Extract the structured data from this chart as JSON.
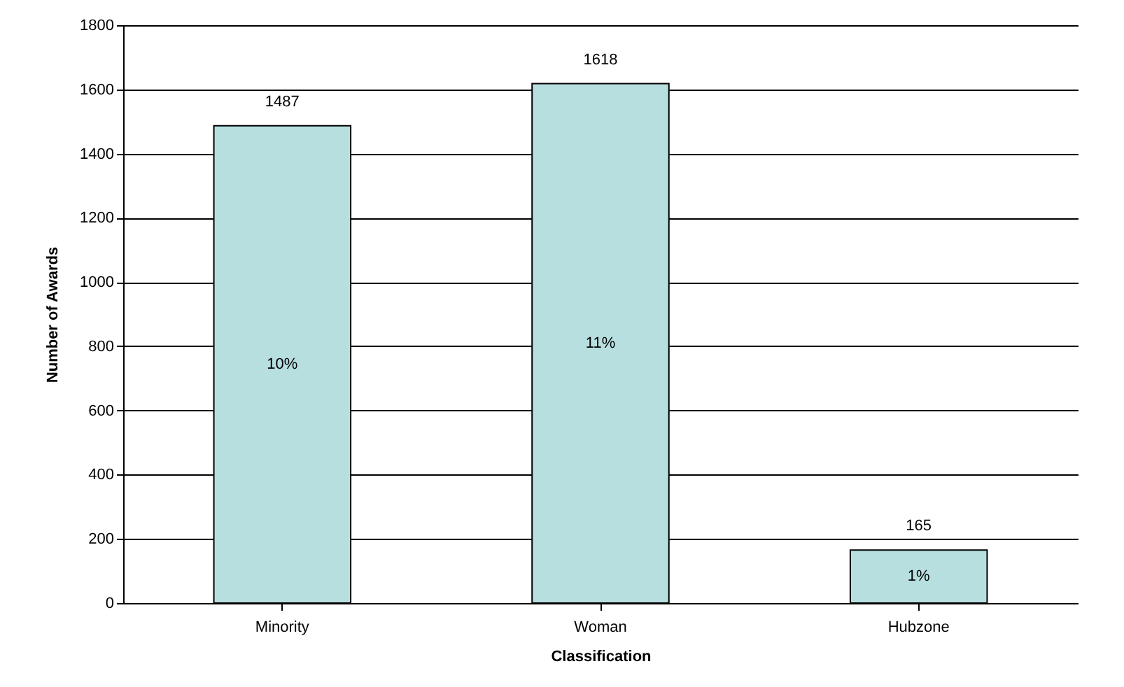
{
  "chart_data": {
    "type": "bar",
    "xlabel": "Classification",
    "ylabel": "Number of Awards",
    "categories": [
      "Minority",
      "Woman",
      "Hubzone"
    ],
    "values": [
      1487,
      1618,
      165
    ],
    "color": "#b7dfe0",
    "annotations": [
      "10%",
      "11%",
      "1%"
    ],
    "ylim": [
      0,
      1800
    ],
    "yticks": [
      0,
      200,
      400,
      600,
      800,
      1000,
      1200,
      1400,
      1600,
      1800
    ],
    "grid": "y",
    "data_labels": true
  }
}
